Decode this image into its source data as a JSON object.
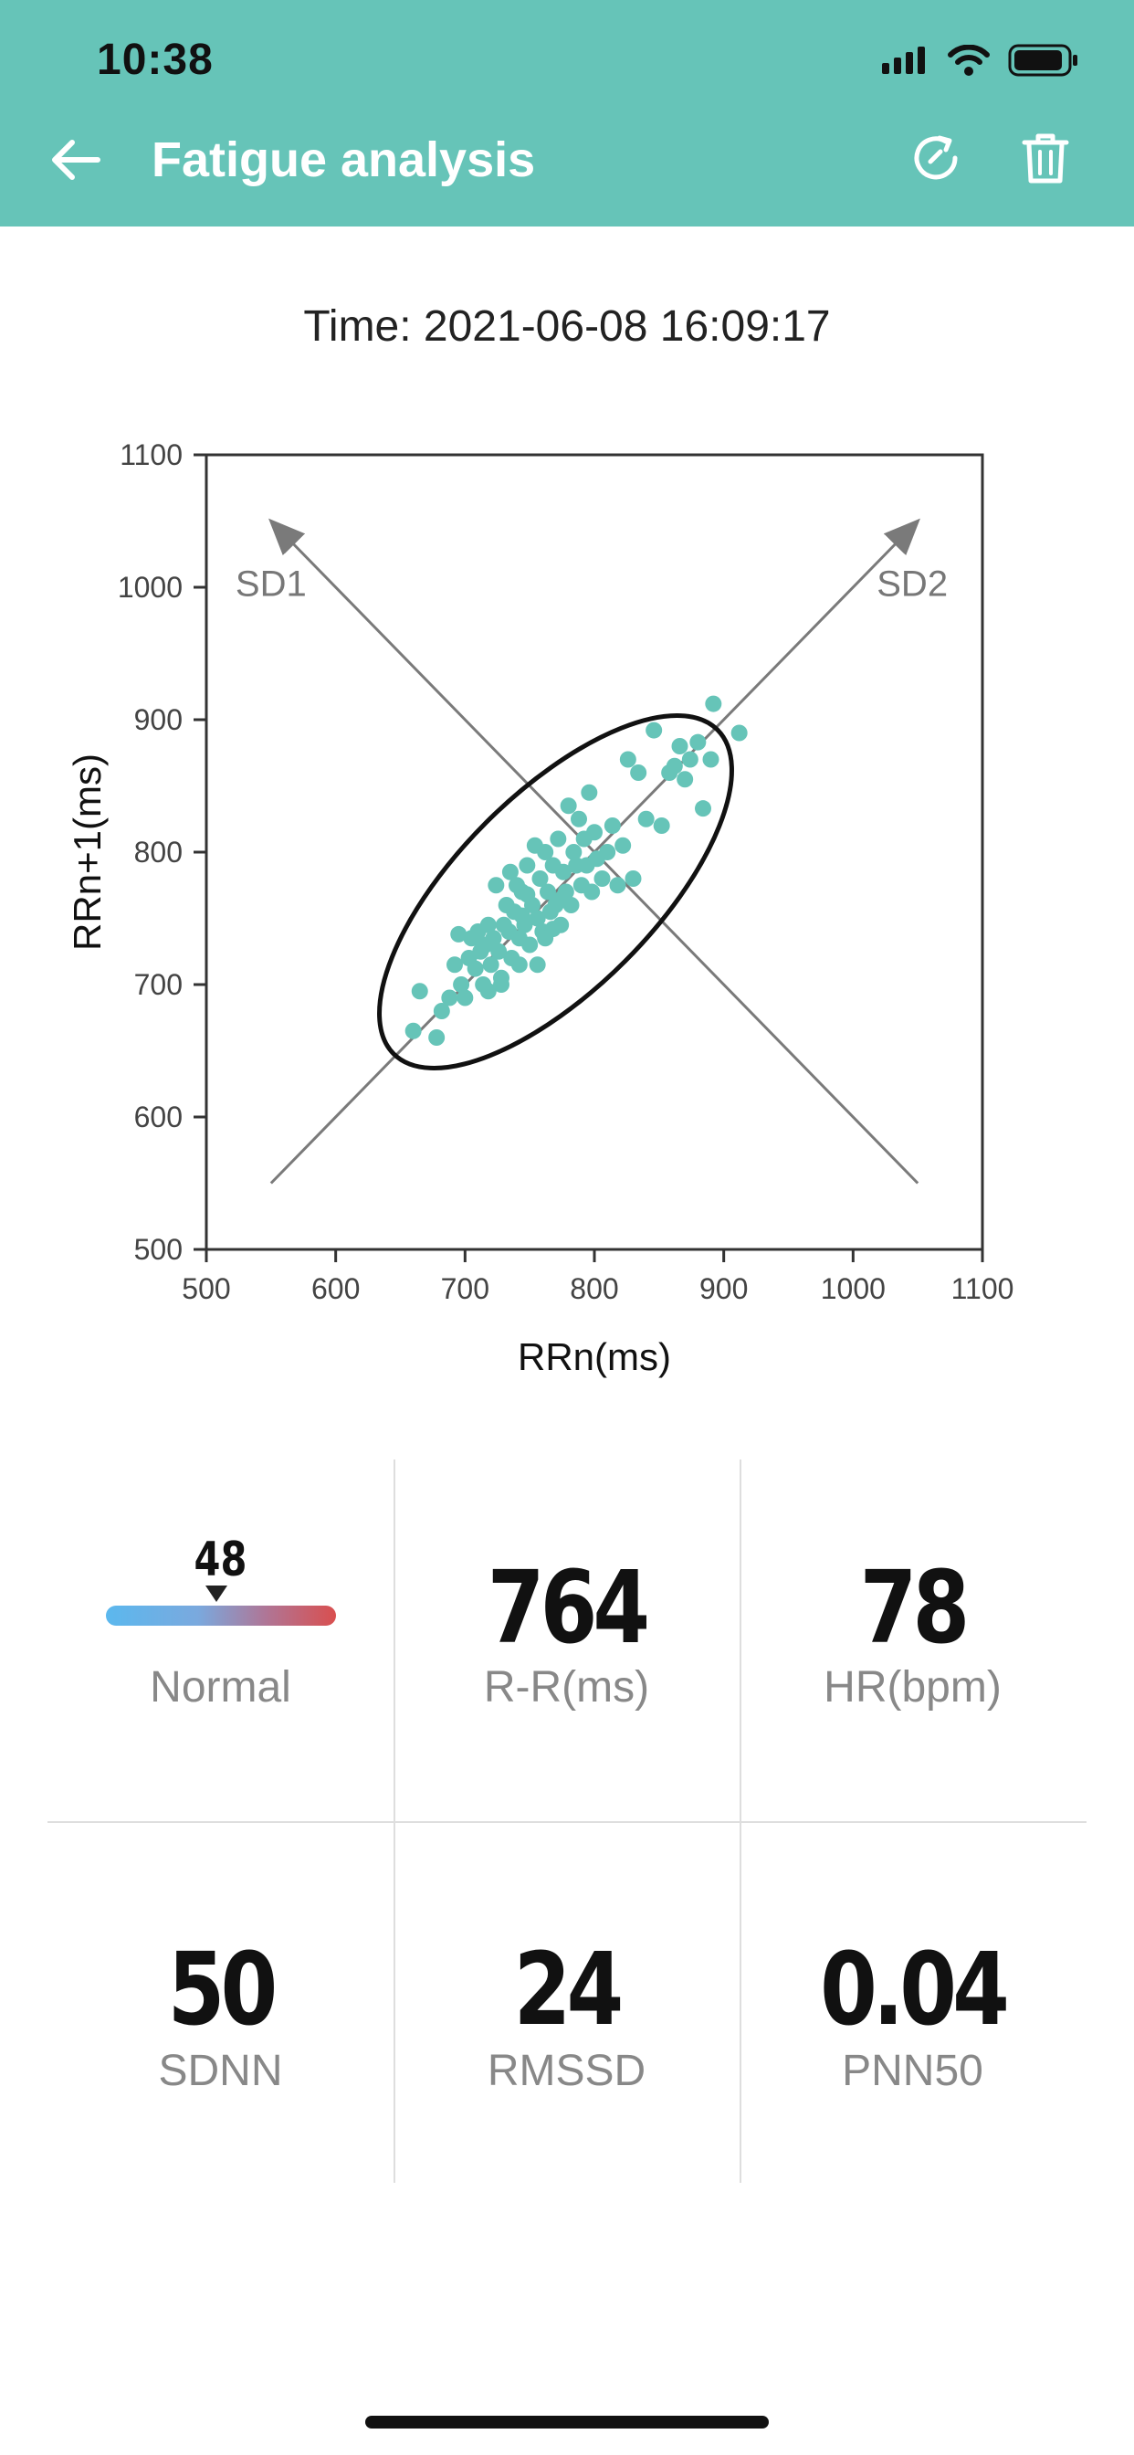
{
  "status_bar": {
    "time": "10:38"
  },
  "header": {
    "title": "Fatigue analysis",
    "background_color": "#66c4b8",
    "icons": [
      "back-arrow-icon",
      "refresh-icon",
      "trash-icon"
    ]
  },
  "record": {
    "time_text": "Time: 2021-06-08 16:09:17"
  },
  "chart_data": {
    "type": "scatter",
    "xlabel": "RRn(ms)",
    "ylabel": "RRn+1(ms)",
    "xlim": [
      500,
      1100
    ],
    "ylim": [
      500,
      1100
    ],
    "x_ticks": [
      "500",
      "600",
      "700",
      "800",
      "900",
      "1000",
      "1100"
    ],
    "y_ticks": [
      "500",
      "600",
      "700",
      "800",
      "900",
      "1000",
      "1100"
    ],
    "point_color": "#66c4b8",
    "annotations": [
      "SD1",
      "SD2"
    ],
    "sd1_axis": {
      "from": [
        1050,
        550
      ],
      "to": [
        550,
        1050
      ]
    },
    "sd2_axis": {
      "from": [
        550,
        550
      ],
      "to": [
        1050,
        1050
      ]
    },
    "ellipse": {
      "center": [
        770,
        770
      ],
      "semi_major": 175,
      "semi_minor": 75,
      "angle_deg": 45
    },
    "points": [
      [
        660,
        665
      ],
      [
        665,
        695
      ],
      [
        678,
        660
      ],
      [
        682,
        680
      ],
      [
        688,
        690
      ],
      [
        692,
        715
      ],
      [
        695,
        738
      ],
      [
        697,
        700
      ],
      [
        700,
        690
      ],
      [
        703,
        720
      ],
      [
        705,
        735
      ],
      [
        708,
        712
      ],
      [
        710,
        740
      ],
      [
        712,
        725
      ],
      [
        714,
        700
      ],
      [
        716,
        730
      ],
      [
        718,
        745
      ],
      [
        720,
        715
      ],
      [
        722,
        735
      ],
      [
        724,
        775
      ],
      [
        726,
        725
      ],
      [
        728,
        700
      ],
      [
        730,
        745
      ],
      [
        732,
        760
      ],
      [
        734,
        740
      ],
      [
        736,
        720
      ],
      [
        738,
        755
      ],
      [
        740,
        775
      ],
      [
        742,
        735
      ],
      [
        744,
        770
      ],
      [
        746,
        745
      ],
      [
        748,
        790
      ],
      [
        750,
        730
      ],
      [
        752,
        760
      ],
      [
        754,
        805
      ],
      [
        756,
        750
      ],
      [
        758,
        780
      ],
      [
        760,
        740
      ],
      [
        762,
        800
      ],
      [
        764,
        770
      ],
      [
        766,
        755
      ],
      [
        768,
        790
      ],
      [
        770,
        760
      ],
      [
        772,
        810
      ],
      [
        774,
        745
      ],
      [
        776,
        785
      ],
      [
        778,
        770
      ],
      [
        780,
        835
      ],
      [
        782,
        760
      ],
      [
        784,
        800
      ],
      [
        786,
        790
      ],
      [
        788,
        825
      ],
      [
        790,
        775
      ],
      [
        792,
        810
      ],
      [
        794,
        790
      ],
      [
        796,
        845
      ],
      [
        798,
        770
      ],
      [
        800,
        815
      ],
      [
        802,
        795
      ],
      [
        806,
        780
      ],
      [
        810,
        800
      ],
      [
        814,
        820
      ],
      [
        818,
        775
      ],
      [
        822,
        805
      ],
      [
        826,
        870
      ],
      [
        830,
        780
      ],
      [
        834,
        860
      ],
      [
        840,
        825
      ],
      [
        846,
        892
      ],
      [
        852,
        820
      ],
      [
        858,
        860
      ],
      [
        862,
        865
      ],
      [
        866,
        880
      ],
      [
        870,
        855
      ],
      [
        874,
        870
      ],
      [
        880,
        883
      ],
      [
        884,
        833
      ],
      [
        890,
        870
      ],
      [
        892,
        912
      ],
      [
        912,
        890
      ],
      [
        742,
        715
      ],
      [
        728,
        705
      ],
      [
        718,
        695
      ],
      [
        756,
        715
      ],
      [
        762,
        735
      ],
      [
        735,
        785
      ],
      [
        748,
        768
      ],
      [
        768,
        742
      ],
      [
        744,
        752
      ],
      [
        775,
        765
      ]
    ]
  },
  "stats": {
    "fatigue": {
      "value": "48",
      "label": "Normal",
      "scale_fraction": 0.48
    },
    "rr": {
      "value": "764",
      "label": "R-R(ms)"
    },
    "hr": {
      "value": "78",
      "label": "HR(bpm)"
    },
    "sdnn": {
      "value": "50",
      "label": "SDNN"
    },
    "rmssd": {
      "value": "24",
      "label": "RMSSD"
    },
    "pnn50": {
      "value": "0.04",
      "label": "PNN50"
    }
  }
}
